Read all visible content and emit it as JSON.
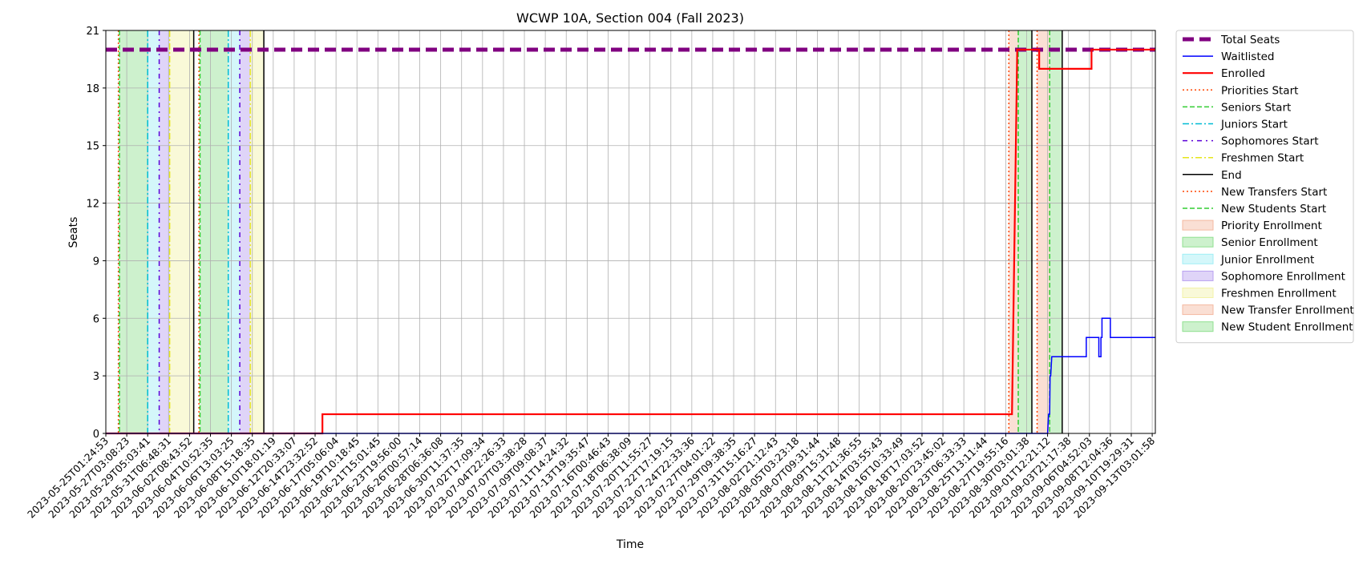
{
  "chart_data": {
    "type": "line",
    "title": "WCWP 10A, Section 004 (Fall 2023)",
    "xlabel": "Time",
    "ylabel": "Seats",
    "ylim": [
      0,
      21
    ],
    "yticks": [
      0,
      3,
      6,
      9,
      12,
      15,
      18,
      21
    ],
    "grid": true,
    "legend_position": "outside-right",
    "xticks": [
      "2023-05-25T01:24:53",
      "2023-05-27T03:08:23",
      "2023-05-29T05:03:41",
      "2023-05-31T06:48:31",
      "2023-06-02T08:43:52",
      "2023-06-04T10:52:35",
      "2023-06-06T13:03:25",
      "2023-06-08T15:18:35",
      "2023-06-10T18:01:19",
      "2023-06-12T20:33:07",
      "2023-06-14T23:32:52",
      "2023-06-17T05:06:04",
      "2023-06-19T10:18:45",
      "2023-06-21T15:01:45",
      "2023-06-23T19:56:00",
      "2023-06-26T00:57:14",
      "2023-06-28T06:36:08",
      "2023-06-30T11:37:35",
      "2023-07-02T17:09:34",
      "2023-07-04T22:26:33",
      "2023-07-07T03:38:28",
      "2023-07-09T09:08:37",
      "2023-07-11T14:24:32",
      "2023-07-13T19:35:47",
      "2023-07-16T00:46:43",
      "2023-07-18T06:38:09",
      "2023-07-20T11:55:27",
      "2023-07-22T17:19:15",
      "2023-07-24T22:33:36",
      "2023-07-27T04:01:22",
      "2023-07-29T09:38:35",
      "2023-07-31T15:16:27",
      "2023-08-02T21:12:43",
      "2023-08-05T03:23:18",
      "2023-08-07T09:31:44",
      "2023-08-09T15:31:48",
      "2023-08-11T21:36:55",
      "2023-08-14T03:55:43",
      "2023-08-16T10:33:49",
      "2023-08-18T17:03:52",
      "2023-08-20T23:45:02",
      "2023-08-23T06:33:33",
      "2023-08-25T13:11:44",
      "2023-08-27T19:55:16",
      "2023-08-30T03:01:38",
      "2023-09-01T12:21:12",
      "2023-09-03T21:17:38",
      "2023-09-06T04:52:03",
      "2023-09-08T12:04:36",
      "2023-09-10T19:29:31",
      "2023-09-13T03:01:58"
    ],
    "x_range": [
      0,
      50.15
    ],
    "series": [
      {
        "name": "Total Seats",
        "color": "#800080",
        "style": "dashed-thick",
        "x": [
          0,
          50.15
        ],
        "y": [
          20,
          20
        ]
      },
      {
        "name": "Enrolled",
        "color": "#ff0000",
        "style": "solid-thick",
        "x": [
          0,
          10.35,
          10.35,
          43.3,
          43.55,
          44.6,
          44.6,
          47.1,
          47.1,
          50.15
        ],
        "y": [
          0,
          0,
          1,
          1,
          20,
          20,
          19,
          19,
          20,
          20
        ]
      },
      {
        "name": "Waitlisted",
        "color": "#0000ff",
        "style": "solid",
        "x": [
          0,
          45.0,
          45.05,
          45.1,
          45.12,
          45.15,
          45.2,
          45.2,
          46.85,
          46.85,
          47.45,
          47.45,
          47.55,
          47.55,
          47.6,
          47.6,
          48.0,
          48.0,
          50.15
        ],
        "y": [
          0,
          0,
          1,
          1,
          3,
          3,
          4,
          4,
          4,
          5,
          5,
          4,
          4,
          5,
          5,
          6,
          6,
          5,
          5
        ]
      }
    ],
    "markers": [
      {
        "name": "Priorities Start",
        "color": "#ff4500",
        "style": "dotted",
        "x": [
          0.6,
          4.45,
          43.15,
          44.5
        ]
      },
      {
        "name": "Seniors Start",
        "color": "#32cd32",
        "style": "dashed",
        "x": [
          0.65,
          4.5,
          43.6,
          45.1
        ]
      },
      {
        "name": "Juniors Start",
        "color": "#00bcd4",
        "style": "dashdot",
        "x": [
          2.0,
          5.85
        ]
      },
      {
        "name": "Sophomores Start",
        "color": "#5a00d8",
        "style": "dashdot-dense",
        "x": [
          2.55,
          6.4
        ]
      },
      {
        "name": "Freshmen Start",
        "color": "#e6e61a",
        "style": "dashdot",
        "x": [
          3.05,
          6.9
        ]
      },
      {
        "name": "End",
        "color": "#000000",
        "style": "solid",
        "x": [
          4.2,
          7.55,
          44.25,
          45.7
        ]
      }
    ],
    "shaded_regions": [
      {
        "name": "Senior Enrollment",
        "color": "#90e090",
        "from": 0.65,
        "to": 2.0
      },
      {
        "name": "Junior Enrollment",
        "color": "#a0eef5",
        "from": 2.0,
        "to": 2.55
      },
      {
        "name": "Sophomore Enrollment",
        "color": "#b8a0f0",
        "from": 2.55,
        "to": 3.05
      },
      {
        "name": "Freshmen Enrollment",
        "color": "#f2f2a8",
        "from": 3.05,
        "to": 4.2
      },
      {
        "name": "Senior Enrollment",
        "color": "#90e090",
        "from": 4.5,
        "to": 5.85
      },
      {
        "name": "Junior Enrollment",
        "color": "#a0eef5",
        "from": 5.85,
        "to": 6.4
      },
      {
        "name": "Sophomore Enrollment",
        "color": "#b8a0f0",
        "from": 6.4,
        "to": 6.9
      },
      {
        "name": "Freshmen Enrollment",
        "color": "#f2f2a8",
        "from": 6.9,
        "to": 7.55
      },
      {
        "name": "Priority Enrollment",
        "color": "#f4b8a0",
        "from": 43.15,
        "to": 43.6
      },
      {
        "name": "Senior Enrollment",
        "color": "#90e090",
        "from": 43.6,
        "to": 44.25
      },
      {
        "name": "New Transfer Enrollment",
        "color": "#f4b8a0",
        "from": 44.5,
        "to": 45.1
      },
      {
        "name": "New Student Enrollment",
        "color": "#90e090",
        "from": 45.1,
        "to": 45.7
      }
    ],
    "legend": [
      {
        "label": "Total Seats",
        "kind": "line",
        "color": "#800080",
        "style": "dashed-thick"
      },
      {
        "label": "Waitlisted",
        "kind": "line",
        "color": "#0000ff",
        "style": "solid"
      },
      {
        "label": "Enrolled",
        "kind": "line",
        "color": "#ff0000",
        "style": "solid-thick"
      },
      {
        "label": "Priorities Start",
        "kind": "line",
        "color": "#ff4500",
        "style": "dotted"
      },
      {
        "label": "Seniors Start",
        "kind": "line",
        "color": "#32cd32",
        "style": "dashed"
      },
      {
        "label": "Juniors Start",
        "kind": "line",
        "color": "#00bcd4",
        "style": "dashdot"
      },
      {
        "label": "Sophomores Start",
        "kind": "line",
        "color": "#5a00d8",
        "style": "dashdot-dense"
      },
      {
        "label": "Freshmen Start",
        "kind": "line",
        "color": "#e6e61a",
        "style": "dashdot"
      },
      {
        "label": "End",
        "kind": "line",
        "color": "#000000",
        "style": "solid"
      },
      {
        "label": "New Transfers Start",
        "kind": "line",
        "color": "#ff4500",
        "style": "dotted"
      },
      {
        "label": "New Students Start",
        "kind": "line",
        "color": "#32cd32",
        "style": "dashed"
      },
      {
        "label": "Priority Enrollment",
        "kind": "patch",
        "color": "#f4b8a0"
      },
      {
        "label": "Senior Enrollment",
        "kind": "patch",
        "color": "#90e090"
      },
      {
        "label": "Junior Enrollment",
        "kind": "patch",
        "color": "#a0eef5"
      },
      {
        "label": "Sophomore Enrollment",
        "kind": "patch",
        "color": "#b8a0f0"
      },
      {
        "label": "Freshmen Enrollment",
        "kind": "patch",
        "color": "#f2f2a8"
      },
      {
        "label": "New Transfer Enrollment",
        "kind": "patch",
        "color": "#f4b8a0"
      },
      {
        "label": "New Student Enrollment",
        "kind": "patch",
        "color": "#90e090"
      }
    ]
  }
}
